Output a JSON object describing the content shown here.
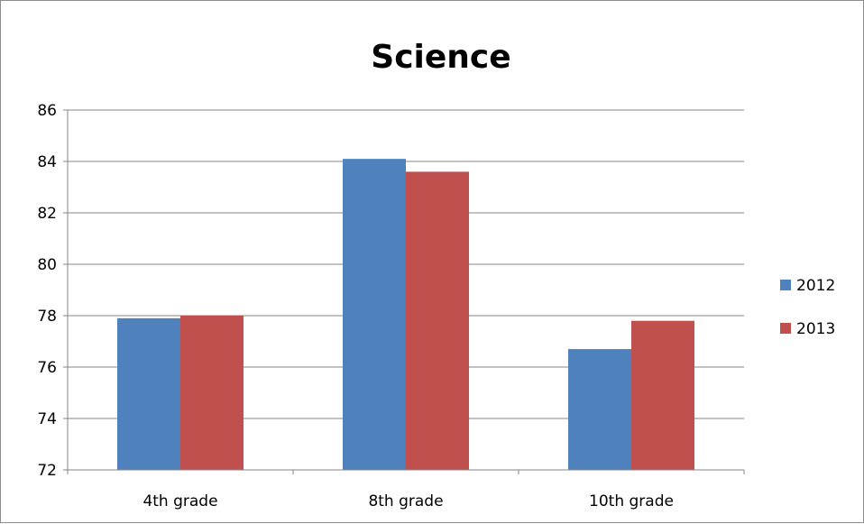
{
  "chart_data": {
    "type": "bar",
    "title": "Science",
    "categories": [
      "4th grade",
      "8th grade",
      "10th grade"
    ],
    "series": [
      {
        "name": "2012",
        "values": [
          77.9,
          84.1,
          76.7
        ],
        "color": "#4F81BD"
      },
      {
        "name": "2013",
        "values": [
          78.0,
          83.6,
          77.8
        ],
        "color": "#C0504D"
      }
    ],
    "ylim": [
      72,
      86
    ],
    "yticks": [
      "72",
      "74",
      "76",
      "78",
      "80",
      "82",
      "84",
      "86"
    ],
    "grid": true,
    "legend": "right"
  }
}
